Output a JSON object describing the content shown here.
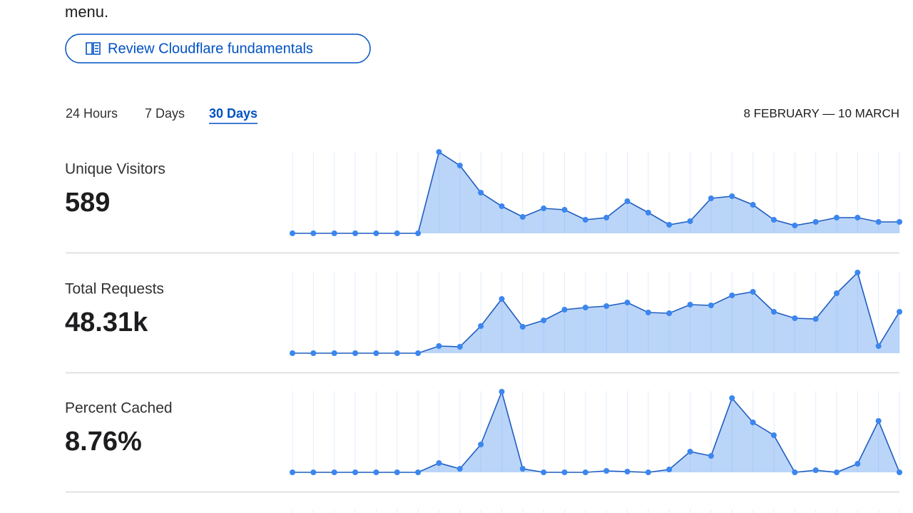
{
  "intro_text": "menu.",
  "button": "Review Cloudflare fundamentals",
  "tabs": [
    "24 Hours",
    "7 Days",
    "30 Days"
  ],
  "active_tab": 2,
  "date_range": "8 FEBRUARY — 10 MARCH",
  "metrics": [
    {
      "label": "Unique Visitors",
      "value": "589"
    },
    {
      "label": "Total Requests",
      "value": "48.31k"
    },
    {
      "label": "Percent Cached",
      "value": "8.76%"
    }
  ],
  "chart_data": [
    {
      "type": "area",
      "color": "#3b86ef",
      "ylim": [
        0,
        114
      ],
      "values": [
        0,
        0,
        0,
        0,
        0,
        0,
        0,
        114,
        95,
        57,
        38,
        23,
        35,
        33,
        19,
        22,
        45,
        29,
        12,
        17,
        49,
        52,
        40,
        19,
        11,
        16,
        22,
        22,
        16,
        16
      ]
    },
    {
      "type": "area",
      "color": "#3b86ef",
      "ylim": [
        0,
        114
      ],
      "values": [
        0,
        0,
        0,
        0,
        0,
        0,
        0,
        10,
        9,
        38,
        76,
        37,
        46,
        61,
        64,
        66,
        71,
        57,
        56,
        68,
        67,
        81,
        86,
        58,
        49,
        48,
        84,
        113,
        10,
        58
      ]
    },
    {
      "type": "area",
      "color": "#3b86ef",
      "ylim": [
        0,
        114
      ],
      "values": [
        0,
        0,
        0,
        0,
        0,
        0,
        0,
        13,
        5,
        39,
        113,
        5,
        0,
        0,
        0,
        2,
        1,
        0,
        4,
        29,
        23,
        104,
        70,
        52,
        0,
        3,
        0,
        12,
        72,
        0
      ]
    }
  ]
}
